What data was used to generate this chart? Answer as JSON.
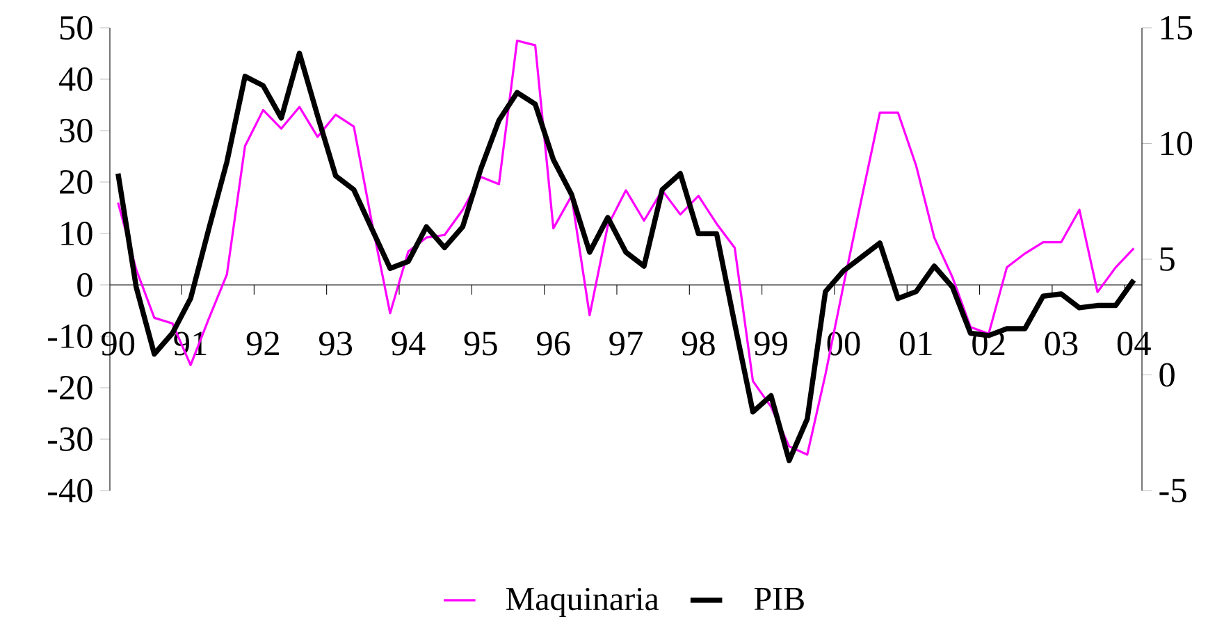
{
  "chart_data": {
    "type": "line",
    "categories": [
      "90",
      null,
      null,
      null,
      "91",
      null,
      null,
      null,
      "92",
      null,
      null,
      null,
      "93",
      null,
      null,
      null,
      "94",
      null,
      null,
      null,
      "95",
      null,
      null,
      null,
      "96",
      null,
      null,
      null,
      "97",
      null,
      null,
      null,
      "98",
      null,
      null,
      null,
      "99",
      null,
      null,
      null,
      "00",
      null,
      null,
      null,
      "01",
      null,
      null,
      null,
      "02",
      null,
      null,
      null,
      "03",
      null,
      null,
      null,
      "04"
    ],
    "series": [
      {
        "name": "Maquinaria",
        "color": "#ff00ff",
        "values": [
          16,
          3,
          -6.4,
          -7.5,
          -15.6,
          -6.6,
          2,
          27,
          34,
          30.4,
          34.6,
          28.8,
          33.1,
          30.8,
          12,
          -5.5,
          6.5,
          9.2,
          9.7,
          14.6,
          21,
          19.6,
          47.5,
          46.6,
          11,
          17.3,
          -5.9,
          11.5,
          18.4,
          12.5,
          18.4,
          13.7,
          17.3,
          11.9,
          7.2,
          -18.7,
          -23.7,
          -31.4,
          -33,
          -17.4,
          0,
          16.9,
          33.5,
          33.5,
          23.2,
          9.2,
          1.5,
          -8.2,
          -9.5,
          3.4,
          6.1,
          8.3,
          8.3,
          14.6,
          -1.4,
          3.4,
          7.1
        ]
      },
      {
        "name": "PIB",
        "color": "#000000",
        "axis": "y2",
        "values": [
          8.7,
          3.8,
          0.9,
          1.8,
          3.3,
          6.3,
          9.2,
          12.9,
          12.5,
          11.1,
          13.9,
          11.2,
          8.6,
          8,
          6.3,
          4.6,
          4.9,
          6.4,
          5.5,
          6.4,
          8.9,
          11,
          12.2,
          11.7,
          9.3,
          7.8,
          5.3,
          6.8,
          5.3,
          4.7,
          8,
          8.7,
          6.1,
          6.1,
          2.2,
          -1.6,
          -0.9,
          -3.7,
          -1.9,
          3.6,
          4.5,
          5.1,
          5.7,
          3.3,
          3.6,
          4.7,
          3.8,
          1.8,
          1.7,
          2,
          2,
          3.4,
          3.5,
          2.9,
          3,
          3,
          4.1
        ]
      }
    ],
    "ylim": [
      -40,
      50
    ],
    "yticks": [
      -40,
      -30,
      -20,
      -10,
      0,
      10,
      20,
      30,
      40,
      50
    ],
    "y2lim": [
      -5,
      15
    ],
    "y2ticks": [
      -5,
      0,
      5,
      10,
      15
    ],
    "legend": "bottom",
    "grid": false,
    "marker": "none",
    "line_style": "solid"
  }
}
